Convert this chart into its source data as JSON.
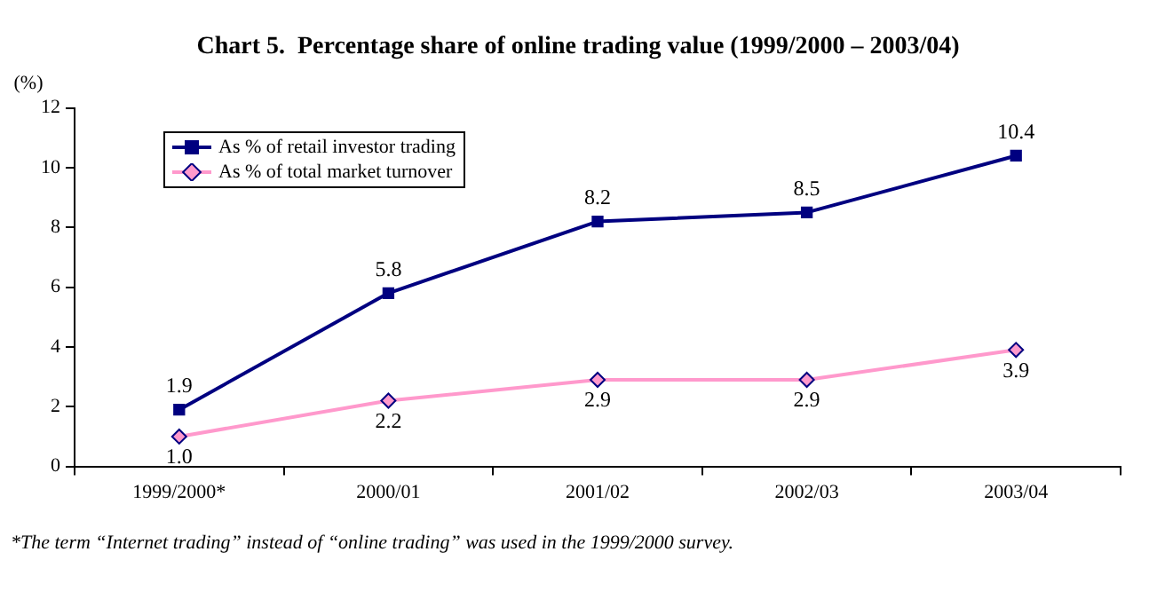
{
  "chart_data": {
    "type": "line",
    "title": "Chart 5.  Percentage share of online trading value (1999/2000 – 2003/04)",
    "ylabel": "(%)",
    "categories": [
      "1999/2000*",
      "2000/01",
      "2001/02",
      "2002/03",
      "2003/04"
    ],
    "series": [
      {
        "name": "As % of retail investor trading",
        "color": "#000080",
        "marker": "square",
        "values": [
          1.9,
          5.8,
          8.2,
          8.5,
          10.4
        ],
        "value_labels": [
          "1.9",
          "5.8",
          "8.2",
          "8.5",
          "10.4"
        ]
      },
      {
        "name": "As % of total market turnover",
        "color": "#ff99cc",
        "marker": "diamond",
        "values": [
          1.0,
          2.2,
          2.9,
          2.9,
          3.9
        ],
        "value_labels": [
          "1.0",
          "2.2",
          "2.9",
          "2.9",
          "3.9"
        ]
      }
    ],
    "ylim": [
      0,
      12
    ],
    "yticks": [
      0,
      2,
      4,
      6,
      8,
      10,
      12
    ],
    "grid": false,
    "legend": "top left",
    "line_style": "solid",
    "annotations": [
      "*The term “Internet trading” instead of “online trading” was used in the 1999/2000 survey."
    ]
  }
}
